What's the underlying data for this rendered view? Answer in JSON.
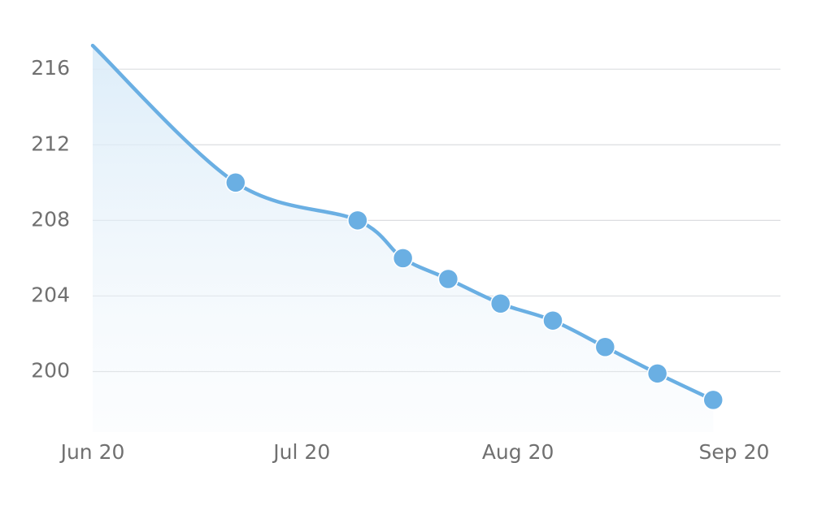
{
  "chart_data": {
    "type": "line",
    "x": [
      0,
      20.5,
      38,
      44.5,
      51,
      58.5,
      66,
      73.5,
      81,
      89
    ],
    "series": [
      {
        "color": "#6aafe3",
        "values": [
          217.25,
          210,
          208,
          206,
          204.9,
          203.6,
          202.7,
          201.3,
          199.9,
          198.5
        ]
      }
    ],
    "xlim": [
      0,
      99
    ],
    "xticks": [
      {
        "value": 0,
        "label": "Jun 20"
      },
      {
        "value": 30,
        "label": "Jul 20"
      },
      {
        "value": 61,
        "label": "Aug 20"
      },
      {
        "value": 92,
        "label": "Sep 20"
      }
    ],
    "ylim": [
      196.8,
      218.8
    ],
    "yticks": [
      200,
      204,
      208,
      212,
      216
    ],
    "grid": true,
    "area": true
  }
}
